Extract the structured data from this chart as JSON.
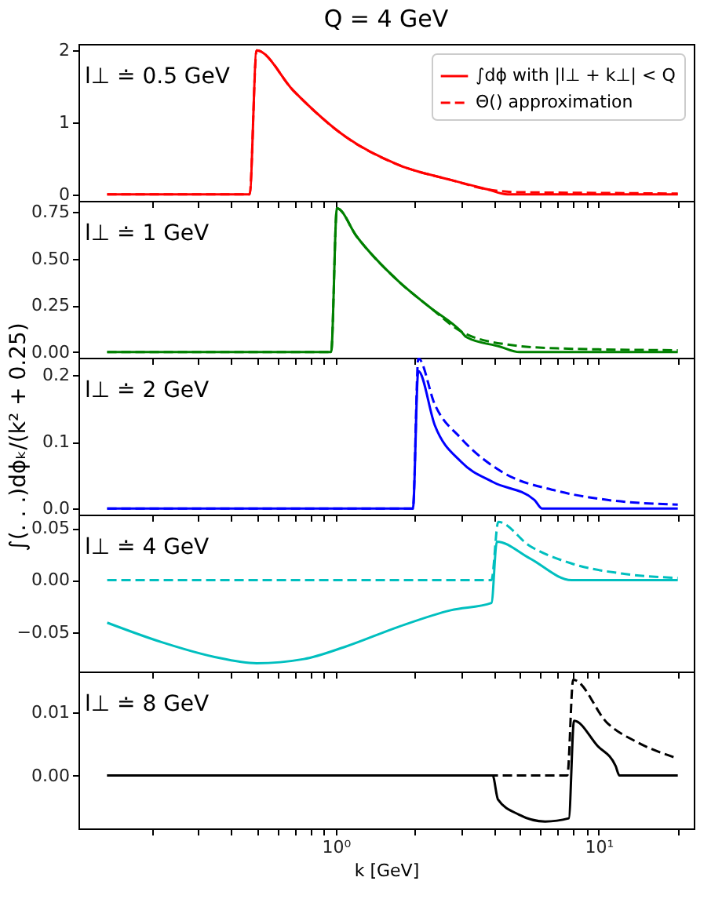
{
  "chart_data": [
    {
      "type": "line",
      "title": "Q = 4 GeV",
      "annotations": [
        "l⊥ ≐ 0.5 GeV"
      ],
      "log": "x",
      "legend": "top right",
      "tick_labels": "y",
      "xlim": [
        0.105,
        23
      ],
      "xticks": [
        {
          "value": 0.2,
          "label": null
        },
        {
          "value": 0.3,
          "label": null
        },
        {
          "value": 0.4,
          "label": null
        },
        {
          "value": 0.5,
          "label": null
        },
        {
          "value": 0.6,
          "label": null
        },
        {
          "value": 0.7,
          "label": null
        },
        {
          "value": 0.8,
          "label": null
        },
        {
          "value": 0.9,
          "label": null
        },
        {
          "value": 1,
          "label": null
        },
        {
          "value": 2,
          "label": null
        },
        {
          "value": 3,
          "label": null
        },
        {
          "value": 4,
          "label": null
        },
        {
          "value": 5,
          "label": null
        },
        {
          "value": 6,
          "label": null
        },
        {
          "value": 7,
          "label": null
        },
        {
          "value": 8,
          "label": null
        },
        {
          "value": 9,
          "label": null
        },
        {
          "value": 10,
          "label": null
        },
        {
          "value": 20,
          "label": null
        }
      ],
      "ylim": [
        -0.09,
        2.09
      ],
      "yticks": [
        0,
        1,
        2
      ],
      "series": [
        {
          "name": "∫dϕ with |l⊥ + k⊥| < Q",
          "color": "#ff0000",
          "line_style": "solid",
          "x": [
            0.135,
            0.47,
            0.5,
            0.69,
            1.09,
            1.73,
            2.74,
            3.77,
            4.5,
            20
          ],
          "values": [
            0,
            0,
            2.0,
            1.44,
            0.8,
            0.41,
            0.2,
            0.07,
            0,
            0
          ]
        },
        {
          "name": "Θ() approximation",
          "color": "#ff0000",
          "line_style": "dashed",
          "x": [
            0.135,
            0.47,
            0.5,
            0.69,
            1.09,
            1.73,
            2.74,
            3.77,
            5,
            10,
            20
          ],
          "values": [
            0,
            0,
            2.0,
            1.44,
            0.8,
            0.41,
            0.2,
            0.07,
            0.03,
            0.02,
            0.01
          ]
        }
      ]
    },
    {
      "type": "line",
      "annotations": [
        "l⊥ ≐ 1 GeV"
      ],
      "log": "x",
      "tick_labels": "y",
      "xlim": [
        0.105,
        23
      ],
      "xticks": [
        {
          "value": 0.2,
          "label": null
        },
        {
          "value": 0.3,
          "label": null
        },
        {
          "value": 0.4,
          "label": null
        },
        {
          "value": 0.5,
          "label": null
        },
        {
          "value": 0.6,
          "label": null
        },
        {
          "value": 0.7,
          "label": null
        },
        {
          "value": 0.8,
          "label": null
        },
        {
          "value": 0.9,
          "label": null
        },
        {
          "value": 1,
          "label": null
        },
        {
          "value": 2,
          "label": null
        },
        {
          "value": 3,
          "label": null
        },
        {
          "value": 4,
          "label": null
        },
        {
          "value": 5,
          "label": null
        },
        {
          "value": 6,
          "label": null
        },
        {
          "value": 7,
          "label": null
        },
        {
          "value": 8,
          "label": null
        },
        {
          "value": 9,
          "label": null
        },
        {
          "value": 10,
          "label": null
        },
        {
          "value": 20,
          "label": null
        }
      ],
      "ylim": [
        -0.03,
        0.81
      ],
      "yticks": [
        {
          "value": 0,
          "label": "0.00"
        },
        0.25,
        {
          "value": 0.5,
          "label": "0.50"
        },
        0.75
      ],
      "series": [
        {
          "color": "#008000",
          "line_style": "solid",
          "x": [
            0.135,
            0.96,
            1.01,
            1.2,
            1.73,
            2.28,
            3.0,
            3.14,
            4.2,
            5.0,
            20
          ],
          "values": [
            0,
            0,
            0.77,
            0.62,
            0.38,
            0.24,
            0.11,
            0.08,
            0.03,
            0,
            0
          ]
        },
        {
          "color": "#008000",
          "line_style": "dashed",
          "x": [
            0.135,
            0.96,
            1.01,
            1.2,
            1.73,
            2.28,
            3.0,
            4.52,
            7.0,
            20
          ],
          "values": [
            0,
            0,
            0.77,
            0.62,
            0.38,
            0.24,
            0.11,
            0.04,
            0.02,
            0.01
          ]
        }
      ]
    },
    {
      "type": "line",
      "annotations": [
        "l⊥ ≐ 2 GeV"
      ],
      "log": "x",
      "tick_labels": "y",
      "ylabel": "∫(. . .)dϕₖ/(k² + 0.25)",
      "xlim": [
        0.105,
        23
      ],
      "xticks": [
        {
          "value": 0.2,
          "label": null
        },
        {
          "value": 0.3,
          "label": null
        },
        {
          "value": 0.4,
          "label": null
        },
        {
          "value": 0.5,
          "label": null
        },
        {
          "value": 0.6,
          "label": null
        },
        {
          "value": 0.7,
          "label": null
        },
        {
          "value": 0.8,
          "label": null
        },
        {
          "value": 0.9,
          "label": null
        },
        {
          "value": 1,
          "label": null
        },
        {
          "value": 2,
          "label": null
        },
        {
          "value": 3,
          "label": null
        },
        {
          "value": 4,
          "label": null
        },
        {
          "value": 5,
          "label": null
        },
        {
          "value": 6,
          "label": null
        },
        {
          "value": 7,
          "label": null
        },
        {
          "value": 8,
          "label": null
        },
        {
          "value": 9,
          "label": null
        },
        {
          "value": 10,
          "label": null
        },
        {
          "value": 20,
          "label": null
        }
      ],
      "ylim": [
        -0.009,
        0.226
      ],
      "yticks": [
        {
          "value": 0,
          "label": "0.0"
        },
        0.1,
        0.2
      ],
      "series": [
        {
          "color": "#0000ff",
          "line_style": "solid",
          "x": [
            0.135,
            1.965,
            2.06,
            2.38,
            3.0,
            3.95,
            5.7,
            6.1,
            20
          ],
          "values": [
            0,
            0,
            0.206,
            0.125,
            0.07,
            0.04,
            0.013,
            0,
            0
          ]
        },
        {
          "color": "#0000ff",
          "line_style": "dashed",
          "x": [
            0.135,
            1.965,
            2.06,
            2.38,
            3.0,
            4.33,
            6.87,
            10.8,
            20
          ],
          "values": [
            0,
            0,
            0.225,
            0.156,
            0.105,
            0.054,
            0.027,
            0.013,
            0.006
          ]
        }
      ]
    },
    {
      "type": "line",
      "annotations": [
        "l⊥ ≐ 4 GeV"
      ],
      "log": "x",
      "tick_labels": "y",
      "xlim": [
        0.105,
        23
      ],
      "xticks": [
        {
          "value": 0.2,
          "label": null
        },
        {
          "value": 0.3,
          "label": null
        },
        {
          "value": 0.4,
          "label": null
        },
        {
          "value": 0.5,
          "label": null
        },
        {
          "value": 0.6,
          "label": null
        },
        {
          "value": 0.7,
          "label": null
        },
        {
          "value": 0.8,
          "label": null
        },
        {
          "value": 0.9,
          "label": null
        },
        {
          "value": 1,
          "label": null
        },
        {
          "value": 2,
          "label": null
        },
        {
          "value": 3,
          "label": null
        },
        {
          "value": 4,
          "label": null
        },
        {
          "value": 5,
          "label": null
        },
        {
          "value": 6,
          "label": null
        },
        {
          "value": 7,
          "label": null
        },
        {
          "value": 8,
          "label": null
        },
        {
          "value": 9,
          "label": null
        },
        {
          "value": 10,
          "label": null
        },
        {
          "value": 20,
          "label": null
        }
      ],
      "ylim": [
        -0.088,
        0.063
      ],
      "yticks": [
        {
          "value": -0.05,
          "label": "−0.05"
        },
        {
          "value": 0,
          "label": "0.00"
        },
        0.05
      ],
      "series": [
        {
          "color": "#00bfbf",
          "line_style": "solid",
          "x": [
            0.135,
            0.219,
            0.346,
            0.5,
            0.756,
            1.09,
            1.73,
            2.74,
            3.91,
            4.1,
            5.46,
            7.88,
            20
          ],
          "values": [
            -0.041,
            -0.06,
            -0.074,
            -0.08,
            -0.076,
            -0.064,
            -0.045,
            -0.029,
            -0.022,
            0.037,
            0.021,
            0,
            0
          ]
        },
        {
          "color": "#00bfbf",
          "line_style": "dashed",
          "x": [
            0.135,
            3.91,
            4.15,
            5.46,
            7.88,
            12.5,
            20
          ],
          "values": [
            0,
            0,
            0.056,
            0.033,
            0.016,
            0.006,
            0.002
          ]
        }
      ]
    },
    {
      "type": "line",
      "annotations": [
        "l⊥ ≐ 8 GeV"
      ],
      "log": "x",
      "xlabel": "k [GeV]",
      "xlim": [
        0.105,
        23
      ],
      "xticks": [
        {
          "value": 0.2,
          "label": null
        },
        {
          "value": 0.3,
          "label": null
        },
        {
          "value": 0.4,
          "label": null
        },
        {
          "value": 0.5,
          "label": null
        },
        {
          "value": 0.6,
          "label": null
        },
        {
          "value": 0.7,
          "label": null
        },
        {
          "value": 0.8,
          "label": null
        },
        {
          "value": 0.9,
          "label": null
        },
        {
          "value": 1,
          "label": "10⁰"
        },
        {
          "value": 2,
          "label": null
        },
        {
          "value": 3,
          "label": null
        },
        {
          "value": 4,
          "label": null
        },
        {
          "value": 5,
          "label": null
        },
        {
          "value": 6,
          "label": null
        },
        {
          "value": 7,
          "label": null
        },
        {
          "value": 8,
          "label": null
        },
        {
          "value": 9,
          "label": null
        },
        {
          "value": 10,
          "label": "10¹"
        },
        {
          "value": 20,
          "label": null
        }
      ],
      "ylim": [
        -0.0084,
        0.0165
      ],
      "yticks": [
        {
          "value": 0,
          "label": "0.00"
        },
        0.01
      ],
      "series": [
        {
          "color": "#000000",
          "line_style": "solid",
          "x": [
            0.135,
            3.95,
            4.14,
            4.97,
            6.26,
            7.7,
            8.06,
            9.9,
            11.6,
            12,
            20
          ],
          "values": [
            0,
            0,
            -0.0038,
            -0.0062,
            -0.0073,
            -0.0068,
            0.0087,
            0.0047,
            0.0015,
            0,
            0
          ]
        },
        {
          "color": "#000000",
          "line_style": "dashed",
          "x": [
            0.135,
            7.6,
            8.0,
            10.8,
            14.3,
            20
          ],
          "values": [
            0,
            0,
            0.0152,
            0.0083,
            0.0051,
            0.0027
          ]
        }
      ]
    }
  ]
}
